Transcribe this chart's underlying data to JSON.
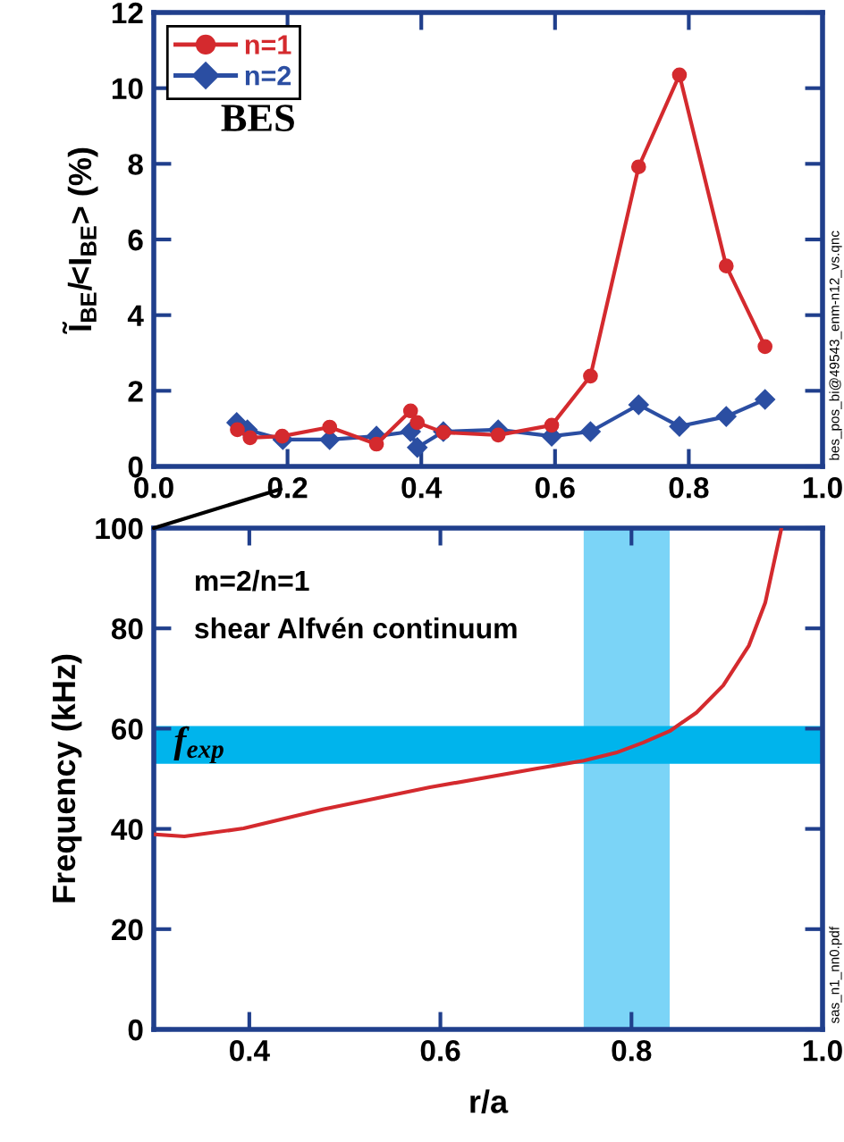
{
  "chart_data": [
    {
      "type": "line",
      "ylabel": "Ĩ$_{BE}$/<I$_{BE}$> (%)",
      "annotations": [
        "BES",
        "bes_pos_bi@49543_enm-n12_vs.qnc"
      ],
      "series": [
        {
          "name": "n=1",
          "color": "#d42a2e",
          "marker": "circle",
          "x": [
            0.125,
            0.144,
            0.192,
            0.263,
            0.333,
            0.384,
            0.394,
            0.433,
            0.515,
            0.595,
            0.653,
            0.725,
            0.786,
            0.856,
            0.914
          ],
          "values": [
            0.97,
            0.76,
            0.8,
            1.04,
            0.59,
            1.47,
            1.16,
            0.9,
            0.83,
            1.09,
            2.39,
            7.92,
            10.35,
            5.3,
            3.17
          ]
        },
        {
          "name": "n=2",
          "color": "#2b4ea2",
          "marker": "diamond",
          "x": [
            0.124,
            0.14,
            0.193,
            0.263,
            0.333,
            0.384,
            0.394,
            0.433,
            0.515,
            0.595,
            0.653,
            0.725,
            0.786,
            0.856,
            0.914
          ],
          "values": [
            1.16,
            0.97,
            0.71,
            0.71,
            0.8,
            0.92,
            0.5,
            0.92,
            0.97,
            0.8,
            0.92,
            1.63,
            1.06,
            1.32,
            1.77
          ]
        }
      ],
      "xlim": [
        0,
        1.0
      ],
      "ylim": [
        0,
        12
      ],
      "xticks": [
        {
          "value": 0,
          "label": "0.0"
        },
        {
          "value": 0.2,
          "label": "0.2"
        },
        {
          "value": 0.4,
          "label": "0.4"
        },
        {
          "value": 0.6,
          "label": "0.6"
        },
        {
          "value": 0.8,
          "label": "0.8"
        },
        {
          "value": 1.0,
          "label": "1.0"
        }
      ],
      "yticks": [
        0,
        2,
        4,
        6,
        8,
        10,
        12
      ],
      "legend": "top left",
      "grid": false
    },
    {
      "type": "line",
      "xlabel": "r/a",
      "ylabel": "Frequency (kHz)",
      "annotations": [
        "m=2/n=1",
        "shear Alfvén continuum",
        "sas_n1_nn0.pdf"
      ],
      "series": [
        {
          "color": "#d42a2e",
          "marker": "none",
          "x": [
            0.302,
            0.332,
            0.394,
            0.477,
            0.589,
            0.7,
            0.75,
            0.784,
            0.812,
            0.84,
            0.868,
            0.896,
            0.923,
            0.94,
            0.957
          ],
          "values": [
            38.9,
            38.5,
            40.1,
            43.9,
            48.3,
            52.0,
            53.6,
            55.2,
            57.2,
            59.5,
            63.2,
            68.6,
            76.6,
            85.1,
            100
          ]
        }
      ],
      "bands": [
        {
          "axis": "y",
          "from": 53,
          "to": 60.5,
          "label": "f$_{exp}$",
          "color": "#00b4ec"
        },
        {
          "axis": "x",
          "from": 0.75,
          "to": 0.84,
          "color": "#6dcff6"
        }
      ],
      "xlim": [
        0.3,
        1.0
      ],
      "ylim": [
        0,
        100
      ],
      "xticks": [
        0.4,
        0.6,
        0.8,
        {
          "value": 1.0,
          "label": "1.0"
        }
      ],
      "yticks": [
        0,
        20,
        40,
        60,
        80,
        100
      ],
      "grid": false
    }
  ]
}
